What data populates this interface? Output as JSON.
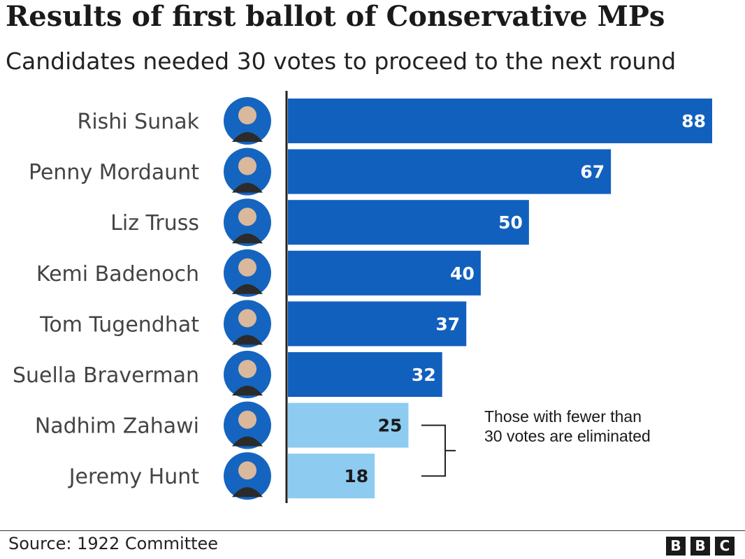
{
  "title": "Results of first ballot of Conservative MPs",
  "subtitle": "Candidates needed 30 votes to proceed to the next round",
  "chart_data": {
    "type": "bar",
    "orientation": "horizontal",
    "title": "Results of first ballot of Conservative MPs",
    "subtitle": "Candidates needed 30 votes to proceed to the next round",
    "categories": [
      "Rishi Sunak",
      "Penny Mordaunt",
      "Liz Truss",
      "Kemi Badenoch",
      "Tom Tugendhat",
      "Suella Braverman",
      "Nadhim Zahawi",
      "Jeremy Hunt"
    ],
    "values": [
      88,
      67,
      50,
      40,
      37,
      32,
      25,
      18
    ],
    "threshold": 30,
    "xlim": [
      0,
      88
    ],
    "grid": false,
    "colors": {
      "above": "#1260be",
      "below": "#8dcbf1",
      "label_above": "#ffffff",
      "label_below": "#1a1a1a",
      "axis": "#222222",
      "avatar_ring": "#1565c0"
    },
    "annotation": [
      "Those with fewer than",
      "30 votes are eliminated"
    ]
  },
  "source": "Source: 1922 Committee",
  "logo": [
    "B",
    "B",
    "C"
  ]
}
